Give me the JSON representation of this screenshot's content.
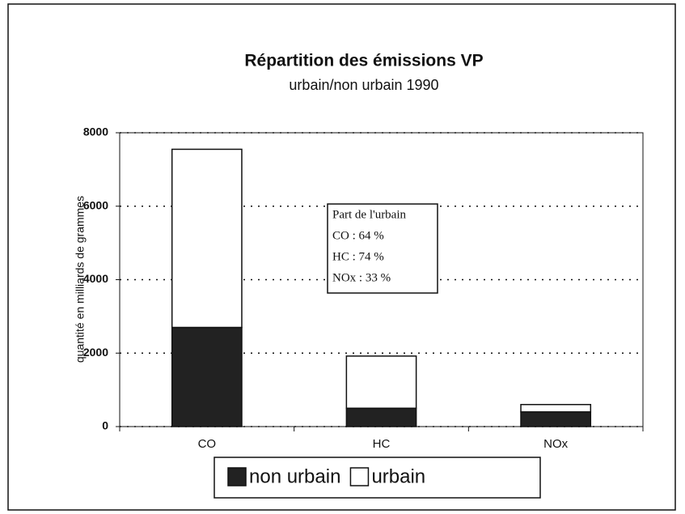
{
  "chart_data": {
    "type": "stacked_bar",
    "title": "Répartition des émissions VP",
    "subtitle": "urbain/non urbain 1990",
    "y_label": "quantité en milliards de grammes",
    "categories": [
      "CO",
      "HC",
      "NOx"
    ],
    "series": [
      {
        "name": "non urbain",
        "color": "#222222",
        "values": [
          2700,
          500,
          400
        ]
      },
      {
        "name": "urbain",
        "color": "#ffffff",
        "values": [
          4850,
          1420,
          200
        ]
      }
    ],
    "ylim": [
      0,
      8000
    ],
    "yticks": [
      0,
      2000,
      4000,
      6000,
      8000
    ],
    "grid": true,
    "annotation": [
      "Part de l'urbain",
      "CO : 64 %",
      "HC : 74 %",
      "NOx : 33 %"
    ]
  }
}
